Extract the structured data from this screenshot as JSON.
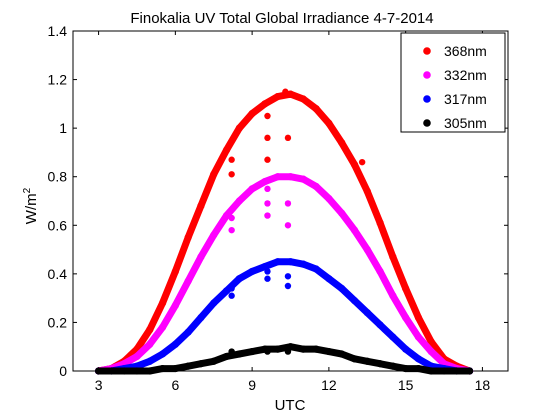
{
  "chart_data": {
    "type": "scatter",
    "title": "Finokalia UV Total Global Irradiance 4-7-2014",
    "xlabel": "UTC",
    "ylabel": "W/m",
    "ylabel_superscript": "2",
    "xlim": [
      2,
      19
    ],
    "ylim": [
      0,
      1.4
    ],
    "xticks": [
      3,
      6,
      9,
      12,
      15,
      18
    ],
    "yticks": [
      0,
      0.2,
      0.4,
      0.6,
      0.8,
      1,
      1.2,
      1.4
    ],
    "xtick_labels": [
      "3",
      "6",
      "9",
      "12",
      "15",
      "18"
    ],
    "ytick_labels": [
      "0",
      "0.2",
      "0.4",
      "0.6",
      "0.8",
      "1",
      "1.2",
      "1.4"
    ],
    "grid": false,
    "legend_position": "top-right",
    "series": [
      {
        "name": "368nm",
        "color": "#ff0000",
        "x": [
          3.0,
          3.5,
          4.0,
          4.5,
          5.0,
          5.5,
          6.0,
          6.5,
          7.0,
          7.5,
          8.0,
          8.5,
          9.0,
          9.5,
          10.0,
          10.5,
          11.0,
          11.5,
          12.0,
          12.5,
          13.0,
          13.5,
          14.0,
          14.5,
          15.0,
          15.5,
          16.0,
          16.5,
          17.0,
          17.5
        ],
        "y": [
          0.0,
          0.01,
          0.04,
          0.09,
          0.17,
          0.28,
          0.41,
          0.55,
          0.68,
          0.81,
          0.91,
          1.0,
          1.06,
          1.1,
          1.13,
          1.14,
          1.12,
          1.08,
          1.02,
          0.94,
          0.85,
          0.74,
          0.61,
          0.47,
          0.34,
          0.22,
          0.12,
          0.05,
          0.02,
          0.0
        ],
        "scatter_x": [
          8.2,
          8.2,
          9.6,
          9.6,
          9.6,
          10.3,
          10.4,
          13.3
        ],
        "scatter_y": [
          0.87,
          0.81,
          1.05,
          0.96,
          0.87,
          1.15,
          0.96,
          0.86
        ]
      },
      {
        "name": "332nm",
        "color": "#ff00ff",
        "x": [
          3.0,
          3.5,
          4.0,
          4.5,
          5.0,
          5.5,
          6.0,
          6.5,
          7.0,
          7.5,
          8.0,
          8.5,
          9.0,
          9.5,
          10.0,
          10.5,
          11.0,
          11.5,
          12.0,
          12.5,
          13.0,
          13.5,
          14.0,
          14.5,
          15.0,
          15.5,
          16.0,
          16.5,
          17.0,
          17.5
        ],
        "y": [
          0.0,
          0.01,
          0.03,
          0.06,
          0.11,
          0.18,
          0.27,
          0.37,
          0.47,
          0.56,
          0.64,
          0.7,
          0.75,
          0.78,
          0.8,
          0.8,
          0.79,
          0.76,
          0.71,
          0.65,
          0.58,
          0.5,
          0.41,
          0.31,
          0.22,
          0.14,
          0.08,
          0.03,
          0.01,
          0.0
        ],
        "scatter_x": [
          8.2,
          8.2,
          9.6,
          9.6,
          9.6,
          10.4,
          10.4
        ],
        "scatter_y": [
          0.63,
          0.58,
          0.75,
          0.69,
          0.64,
          0.69,
          0.6
        ]
      },
      {
        "name": "317nm",
        "color": "#0000ff",
        "x": [
          3.0,
          3.5,
          4.0,
          4.5,
          5.0,
          5.5,
          6.0,
          6.5,
          7.0,
          7.5,
          8.0,
          8.5,
          9.0,
          9.5,
          10.0,
          10.5,
          11.0,
          11.5,
          12.0,
          12.5,
          13.0,
          13.5,
          14.0,
          14.5,
          15.0,
          15.5,
          16.0,
          16.5,
          17.0,
          17.5
        ],
        "y": [
          0.0,
          0.0,
          0.01,
          0.02,
          0.04,
          0.07,
          0.11,
          0.16,
          0.22,
          0.28,
          0.33,
          0.38,
          0.41,
          0.43,
          0.45,
          0.45,
          0.44,
          0.42,
          0.38,
          0.34,
          0.29,
          0.24,
          0.19,
          0.14,
          0.09,
          0.05,
          0.02,
          0.01,
          0.0,
          0.0
        ],
        "scatter_x": [
          8.2,
          8.2,
          9.6,
          9.6,
          10.4,
          10.4
        ],
        "scatter_y": [
          0.34,
          0.31,
          0.41,
          0.38,
          0.39,
          0.35
        ]
      },
      {
        "name": "305nm",
        "color": "#000000",
        "x": [
          3.0,
          3.5,
          4.0,
          4.5,
          5.0,
          5.5,
          6.0,
          6.5,
          7.0,
          7.5,
          8.0,
          8.5,
          9.0,
          9.5,
          10.0,
          10.5,
          11.0,
          11.5,
          12.0,
          12.5,
          13.0,
          13.5,
          14.0,
          14.5,
          15.0,
          15.5,
          16.0,
          16.5,
          17.0,
          17.5
        ],
        "y": [
          0.0,
          0.0,
          0.0,
          0.0,
          0.0,
          0.01,
          0.01,
          0.02,
          0.03,
          0.04,
          0.06,
          0.07,
          0.08,
          0.09,
          0.09,
          0.1,
          0.09,
          0.09,
          0.08,
          0.07,
          0.05,
          0.04,
          0.03,
          0.02,
          0.01,
          0.01,
          0.0,
          0.0,
          0.0,
          0.0
        ],
        "scatter_x": [
          8.2,
          9.6,
          10.4
        ],
        "scatter_y": [
          0.08,
          0.08,
          0.08
        ]
      }
    ]
  }
}
